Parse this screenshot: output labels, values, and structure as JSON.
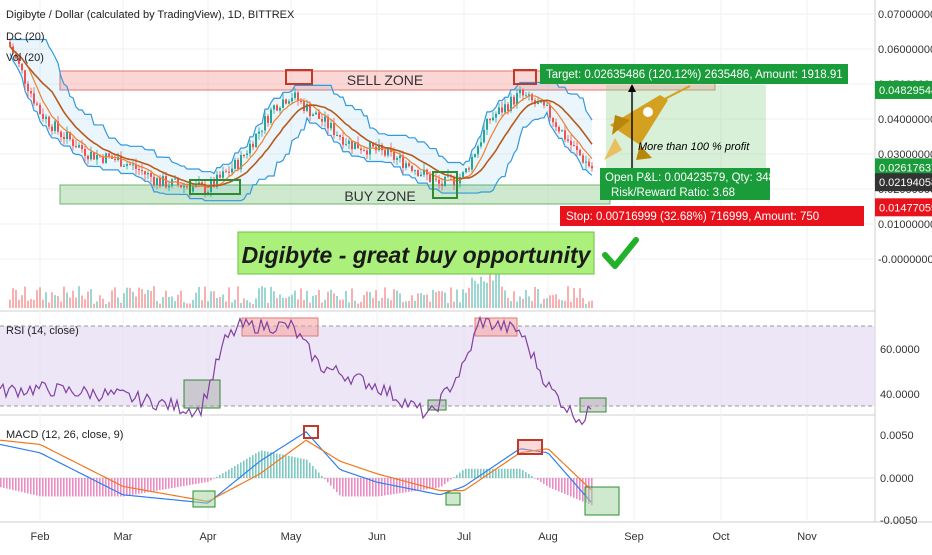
{
  "header": {
    "title": "Digibyte / Dollar (calculated by TradingView), 1D, BITTREX",
    "ind1": "DC (20)",
    "ind2": "Vol (20)"
  },
  "annotations": {
    "sell_zone": "SELL ZONE",
    "buy_zone": "BUY ZONE",
    "headline": "Digibyte - great buy opportunity",
    "profit_note": "More than 100 % profit",
    "target": "Target: 0.02635486 (120.12%) 2635486, Amount: 1918.91",
    "open_pl": "Open P&L: 0.00423579, Qty: 34867",
    "rr": "Risk/Reward Ratio: 3.68",
    "stop": "Stop: 0.00716999 (32.68%) 716999, Amount: 750"
  },
  "price_badges": [
    {
      "label": "0.04829544",
      "color": "#1a9c3a"
    },
    {
      "label": "0.02617637",
      "color": "#1a9c3a"
    },
    {
      "label": "0.02194058",
      "color": "#333333"
    },
    {
      "label": "0.01477059",
      "color": "#e8121c"
    }
  ],
  "colors": {
    "up": "#26a69a",
    "down": "#ef5350",
    "donchian": "#3399dd",
    "ma_orange": "#f08030",
    "rsi": "#8040a0",
    "macd": "#2f80ed",
    "signal": "#f07820",
    "sell": "#f4a3a0",
    "buy": "#9ed39e"
  },
  "chart_data": [
    {
      "type": "candlestick",
      "title": "Digibyte / Dollar (calculated by TradingView), 1D, BITTREX",
      "x": [
        "Feb",
        "Mar",
        "Apr",
        "May",
        "Jun",
        "Jul",
        "Aug",
        "Sep",
        "Oct",
        "Nov"
      ],
      "ylim": [
        -0.01,
        0.07
      ],
      "y_ticks": [
        "0.07000000",
        "0.06000000",
        "0.05000000",
        "0.04000000",
        "0.03000000",
        "0.02000000",
        "0.01000000",
        "-0.0000000"
      ],
      "close_by_month": [
        0.042,
        0.028,
        0.02,
        0.047,
        0.027,
        0.021,
        0.047,
        0.026
      ]
    },
    {
      "type": "line",
      "title": "RSI (14, close)",
      "ylim": [
        30,
        80
      ],
      "y_ticks": [
        "60.0000",
        "40.0000"
      ],
      "values_by_month": [
        47,
        44,
        38,
        72,
        48,
        36,
        74,
        34
      ]
    },
    {
      "type": "line",
      "title": "MACD (12, 26, close, 9)",
      "y_ticks": [
        "0.0050",
        "0.0000",
        "-0.0050"
      ],
      "macd_by_month": [
        0.003,
        -0.002,
        -0.003,
        0.0055,
        -0.0005,
        -0.002,
        0.003,
        -0.003
      ],
      "signal_by_month": [
        0.004,
        -0.001,
        -0.0028,
        0.004,
        0.0005,
        -0.0015,
        0.0035,
        -0.0015
      ]
    }
  ]
}
